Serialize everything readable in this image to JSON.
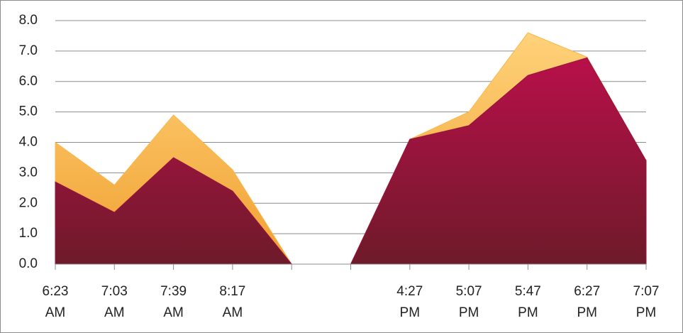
{
  "chart_data": {
    "type": "area",
    "categories": [
      "6:23 AM",
      "7:03 AM",
      "7:39 AM",
      "8:17 AM",
      null,
      null,
      "4:27 PM",
      "5:07 PM",
      "5:47 PM",
      "6:27 PM",
      "7:07 PM"
    ],
    "series": [
      {
        "color": "#f9b64a",
        "values": [
          4.0,
          2.6,
          4.9,
          3.1,
          0,
          0,
          4.1,
          5.0,
          7.6,
          6.8,
          3.4
        ]
      },
      {
        "color": "#9b1040",
        "values": [
          2.7,
          1.7,
          3.5,
          2.4,
          0,
          0,
          4.1,
          4.55,
          6.2,
          6.78,
          3.4
        ]
      }
    ],
    "ylim": [
      0,
      8
    ],
    "yticks": [
      {
        "value": 0,
        "label": "0.0"
      },
      {
        "value": 1,
        "label": "1.0"
      },
      {
        "value": 2,
        "label": "2.0"
      },
      {
        "value": 3,
        "label": "3.0"
      },
      {
        "value": 4,
        "label": "4.0"
      },
      {
        "value": 5,
        "label": "5.0"
      },
      {
        "value": 6,
        "label": "6.0"
      },
      {
        "value": 7,
        "label": "7.0"
      },
      {
        "value": 8,
        "label": "8.0"
      }
    ],
    "grid": true
  }
}
